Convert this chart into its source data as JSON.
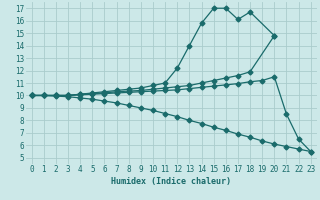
{
  "xlabel": "Humidex (Indice chaleur)",
  "ylabel": "",
  "bg_color": "#cce8e8",
  "grid_color": "#aacccc",
  "line_color": "#1a6b6b",
  "xlim": [
    -0.5,
    23.5
  ],
  "ylim": [
    4.5,
    17.5
  ],
  "xticks": [
    0,
    1,
    2,
    3,
    4,
    5,
    6,
    7,
    8,
    9,
    10,
    11,
    12,
    13,
    14,
    15,
    16,
    17,
    18,
    19,
    20,
    21,
    22,
    23
  ],
  "yticks": [
    5,
    6,
    7,
    8,
    9,
    10,
    11,
    12,
    13,
    14,
    15,
    16,
    17
  ],
  "line1_x": [
    0,
    1,
    2,
    3,
    4,
    5,
    6,
    7,
    8,
    9,
    10,
    11,
    12,
    13,
    14,
    15,
    16,
    17,
    18,
    20
  ],
  "line1_y": [
    10,
    10,
    10,
    10,
    10.1,
    10.2,
    10.3,
    10.4,
    10.5,
    10.6,
    10.8,
    11.0,
    12.2,
    14.0,
    15.8,
    17.0,
    17.0,
    16.1,
    16.7,
    14.8
  ],
  "line2_x": [
    0,
    1,
    2,
    3,
    4,
    5,
    6,
    7,
    8,
    9,
    10,
    11,
    12,
    13,
    14,
    15,
    16,
    17,
    18,
    20
  ],
  "line2_y": [
    10,
    10,
    10,
    10,
    10.1,
    10.15,
    10.2,
    10.3,
    10.35,
    10.4,
    10.5,
    10.6,
    10.7,
    10.8,
    11.0,
    11.2,
    11.4,
    11.6,
    11.9,
    14.8
  ],
  "line3_x": [
    0,
    1,
    2,
    3,
    4,
    5,
    6,
    7,
    8,
    9,
    10,
    11,
    12,
    13,
    14,
    15,
    16,
    17,
    18,
    19,
    20,
    21,
    22,
    23
  ],
  "line3_y": [
    10,
    10,
    10,
    10,
    10.05,
    10.1,
    10.15,
    10.2,
    10.25,
    10.3,
    10.35,
    10.4,
    10.45,
    10.55,
    10.65,
    10.75,
    10.85,
    10.95,
    11.1,
    11.2,
    11.5,
    8.5,
    6.5,
    5.5
  ],
  "line4_x": [
    0,
    1,
    2,
    3,
    4,
    5,
    6,
    7,
    8,
    9,
    10,
    11,
    12,
    13,
    14,
    15,
    16,
    17,
    18,
    19,
    20,
    21,
    22,
    23
  ],
  "line4_y": [
    10,
    10,
    9.95,
    9.9,
    9.8,
    9.7,
    9.55,
    9.4,
    9.2,
    9.0,
    8.8,
    8.55,
    8.3,
    8.0,
    7.75,
    7.45,
    7.2,
    6.9,
    6.65,
    6.35,
    6.1,
    5.9,
    5.7,
    5.5
  ]
}
